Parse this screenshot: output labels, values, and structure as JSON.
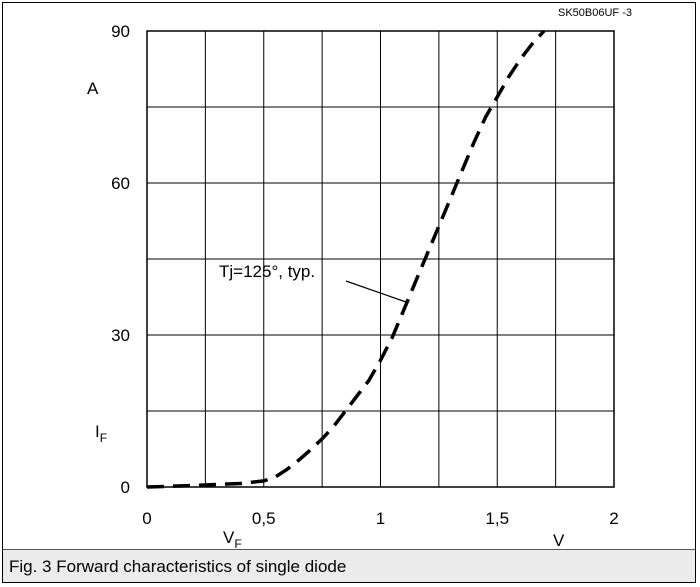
{
  "figure_id": "SK50B06UF -3",
  "caption": "Fig. 3 Forward characteristics of single diode",
  "annotation": "Tj=125°, typ.",
  "colors": {
    "grid": "#000000",
    "curve": "#000000",
    "caption_bg": "#ececec"
  },
  "chart_data": {
    "type": "line",
    "ylabel_unit": "A",
    "ylabel": "I",
    "ylabel_sub": "F",
    "xlabel": "V",
    "xlabel_sub": "F",
    "xlabel_unit": "V",
    "xlim": [
      0,
      2
    ],
    "ylim": [
      0,
      90
    ],
    "x_ticks": [
      {
        "value": 0,
        "label": "0"
      },
      {
        "value": 0.5,
        "label": "0,5"
      },
      {
        "value": 1,
        "label": "1"
      },
      {
        "value": 1.5,
        "label": "1,5"
      },
      {
        "value": 2,
        "label": "2"
      }
    ],
    "y_ticks": [
      {
        "value": 0,
        "label": "0"
      },
      {
        "value": 30,
        "label": "30"
      },
      {
        "value": 60,
        "label": "60"
      },
      {
        "value": 90,
        "label": "90"
      }
    ],
    "grid_x": [
      0.25,
      0.5,
      0.75,
      1,
      1.25,
      1.5,
      1.75
    ],
    "grid_y": [
      15,
      30,
      45,
      60,
      75
    ],
    "grid": true,
    "series": [
      {
        "style": "dashed",
        "x": [
          0.0,
          0.2,
          0.4,
          0.5,
          0.55,
          0.6,
          0.65,
          0.7,
          0.75,
          0.8,
          0.85,
          0.9,
          0.95,
          1.0,
          1.05,
          1.1,
          1.15,
          1.2,
          1.25,
          1.3,
          1.35,
          1.4,
          1.45,
          1.5,
          1.55,
          1.6,
          1.65,
          1.7
        ],
        "y": [
          0.0,
          0.3,
          0.7,
          1.2,
          2.0,
          3.5,
          5.3,
          7.3,
          9.5,
          12.0,
          15.0,
          18.0,
          21.0,
          25.0,
          29.5,
          35.0,
          40.5,
          46.0,
          51.5,
          57.0,
          62.5,
          68.0,
          73.0,
          77.0,
          81.0,
          84.5,
          87.5,
          90.0
        ]
      }
    ]
  }
}
